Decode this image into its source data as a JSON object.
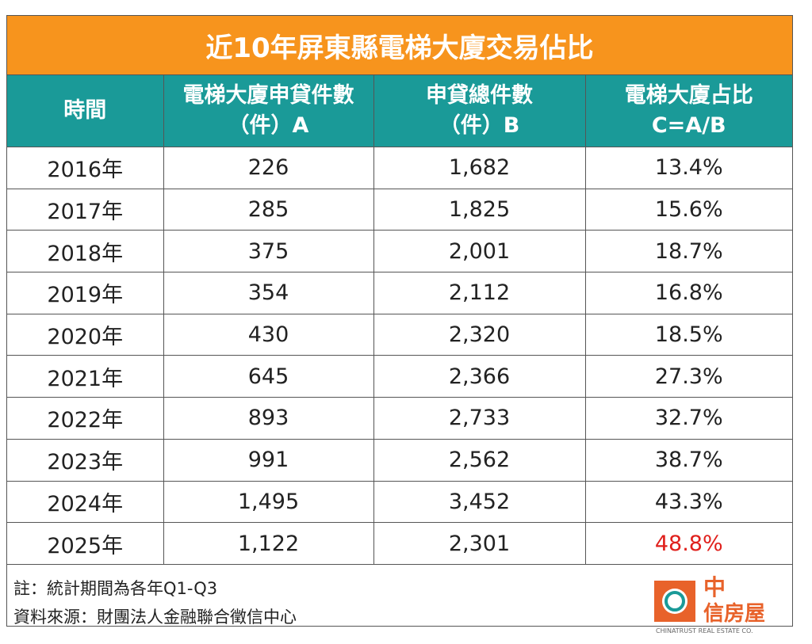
{
  "title": "近10年屏東縣電梯大廈交易佔比",
  "table": {
    "header": [
      [
        "時間"
      ],
      [
        "電梯大廈申貸件數",
        "（件）A"
      ],
      [
        "申貸總件數",
        "（件）B"
      ],
      [
        "電梯大廈占比",
        "C=A/B"
      ]
    ],
    "rows": [
      [
        "2016年",
        "226",
        "1,682",
        "13.4%"
      ],
      [
        "2017年",
        "285",
        "1,825",
        "15.6%"
      ],
      [
        "2018年",
        "375",
        "2,001",
        "18.7%"
      ],
      [
        "2019年",
        "354",
        "2,112",
        "16.8%"
      ],
      [
        "2020年",
        "430",
        "2,320",
        "18.5%"
      ],
      [
        "2021年",
        "645",
        "2,366",
        "27.3%"
      ],
      [
        "2022年",
        "893",
        "2,733",
        "32.7%"
      ],
      [
        "2023年",
        "991",
        "2,562",
        "38.7%"
      ],
      [
        "2024年",
        "1,495",
        "3,452",
        "43.3%"
      ],
      [
        "2025年",
        "1,122",
        "2,301",
        "48.8%"
      ]
    ]
  },
  "notes": [
    "註：統計期間為各年Q1-Q3",
    "資料來源：財團法人金融聯合徵信中心"
  ],
  "logo": {
    "line1": "中",
    "line2": "信房屋",
    "sub": "CHINATRUST REAL ESTATE CO."
  }
}
